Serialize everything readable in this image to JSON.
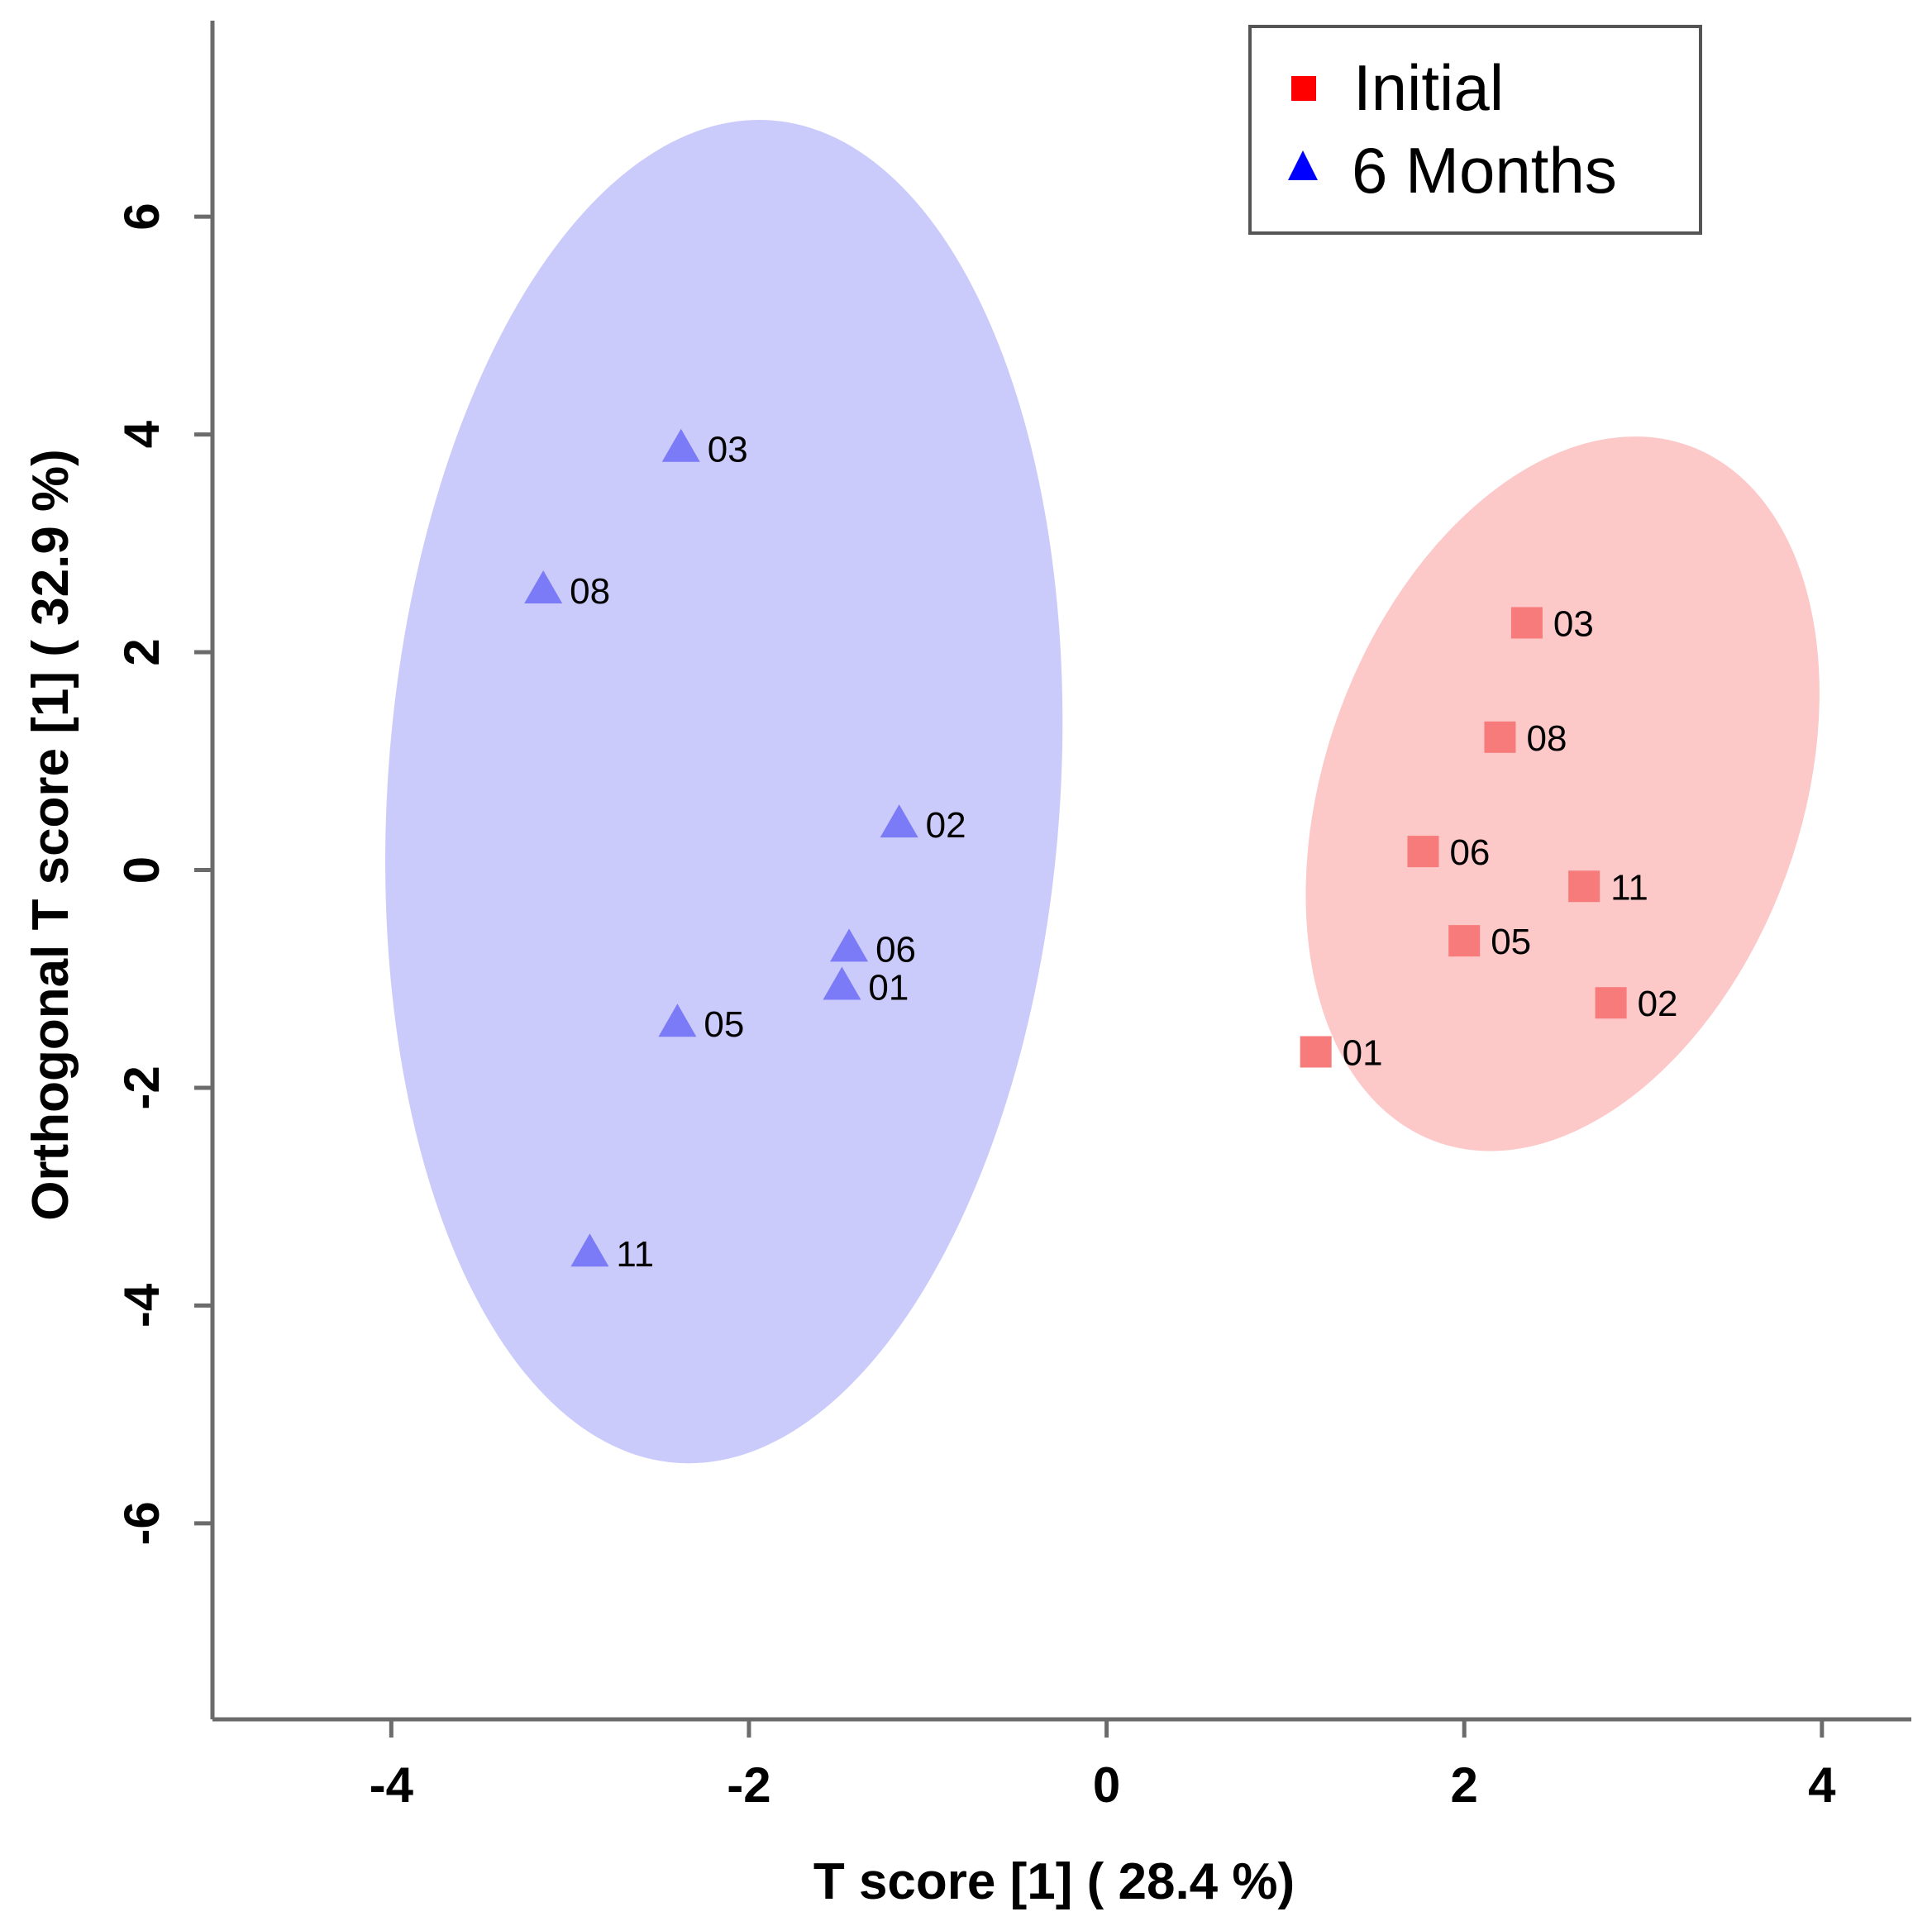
{
  "chart_data": {
    "type": "scatter",
    "title": "",
    "xlabel": "T score [1] ( 28.4 %)",
    "ylabel": "Orthogonal T score [1] ( 32.9 %)",
    "xlim": [
      -5.0,
      4.5
    ],
    "ylim": [
      -7.8,
      7.8
    ],
    "xticks": [
      -4,
      -2,
      0,
      2,
      4
    ],
    "xtick_labels": [
      "-4",
      "-2",
      "0",
      "2",
      "4"
    ],
    "yticks": [
      -6,
      -4,
      -2,
      0,
      2,
      4,
      6
    ],
    "ytick_labels": [
      "-6",
      "-4",
      "-2",
      "0",
      "2",
      "4",
      "6"
    ],
    "grid": false,
    "legend_position": "top-right",
    "series": [
      {
        "name": "Initial",
        "marker": "square",
        "color": "#ff0000",
        "point_color": "#f77b7b",
        "ellipse_fill": "#fcc8c8",
        "ellipse": {
          "cx": 2.55,
          "cy": 0.7,
          "rx": 1.33,
          "ry": 3.4,
          "angle_deg": 20
        },
        "points": [
          {
            "label": "03",
            "x": 2.35,
            "y": 2.27
          },
          {
            "label": "08",
            "x": 2.2,
            "y": 1.22
          },
          {
            "label": "06",
            "x": 1.77,
            "y": 0.17
          },
          {
            "label": "11",
            "x": 2.67,
            "y": -0.15
          },
          {
            "label": "05",
            "x": 2.0,
            "y": -0.65
          },
          {
            "label": "02",
            "x": 2.82,
            "y": -1.22
          },
          {
            "label": "01",
            "x": 1.17,
            "y": -1.67
          }
        ]
      },
      {
        "name": "6 Months",
        "marker": "triangle",
        "color": "#0000ff",
        "point_color": "#7b7bf7",
        "ellipse_fill": "#cbcbfb",
        "ellipse": {
          "cx": -2.14,
          "cy": 0.72,
          "rx": 1.88,
          "ry": 6.18,
          "angle_deg": 4
        },
        "points": [
          {
            "label": "03",
            "x": -2.38,
            "y": 3.87
          },
          {
            "label": "08",
            "x": -3.15,
            "y": 2.57
          },
          {
            "label": "02",
            "x": -1.16,
            "y": 0.42
          },
          {
            "label": "06",
            "x": -1.44,
            "y": -0.72
          },
          {
            "label": "01",
            "x": -1.48,
            "y": -1.07
          },
          {
            "label": "05",
            "x": -2.4,
            "y": -1.41
          },
          {
            "label": "11",
            "x": -2.89,
            "y": -3.52
          }
        ]
      }
    ]
  }
}
